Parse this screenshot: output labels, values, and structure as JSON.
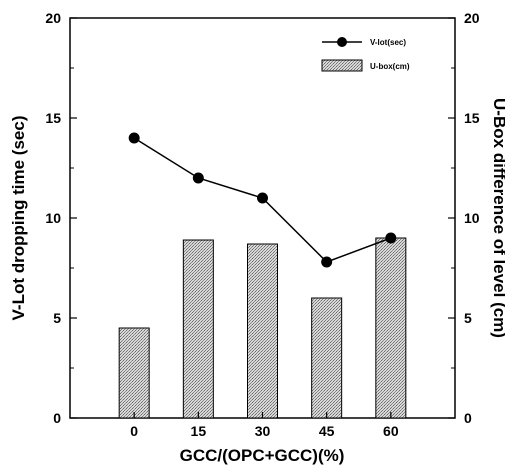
{
  "chart_data": {
    "type": "bar+line",
    "categories": [
      "0",
      "15",
      "30",
      "45",
      "60"
    ],
    "xlabel": "GCC/(OPC+GCC)(%)",
    "ylabel_left": "V-Lot dropping time (sec)",
    "ylabel_right": "U-Box difference of level (cm)",
    "ylim_left": [
      0,
      20
    ],
    "ylim_right": [
      0,
      20
    ],
    "yticks_left": [
      "0",
      "5",
      "10",
      "15",
      "20"
    ],
    "yticks_right": [
      "0",
      "5",
      "10",
      "15",
      "20"
    ],
    "grid": false,
    "legend_position": "top-right",
    "series": [
      {
        "name": "V-lot(sec)",
        "kind": "line",
        "marker": "filled-circle",
        "color": "#000000",
        "values": [
          14.0,
          12.0,
          11.0,
          7.8,
          9.0
        ]
      },
      {
        "name": "U-box(cm)",
        "kind": "bar",
        "pattern": "stippled",
        "color": "#cfcfcf",
        "values": [
          4.5,
          8.9,
          8.7,
          6.0,
          9.0
        ]
      }
    ]
  }
}
